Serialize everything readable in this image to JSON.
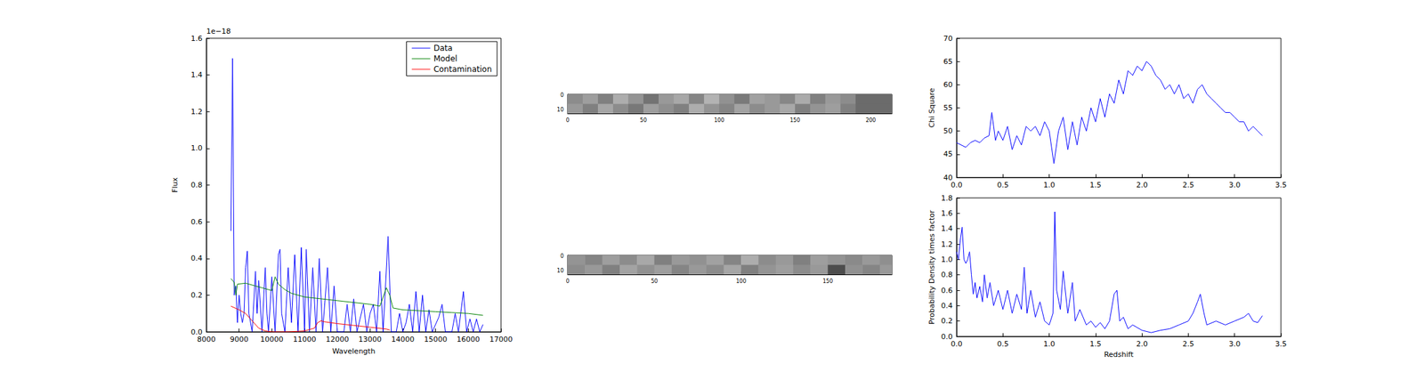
{
  "chart_data": [
    {
      "type": "line",
      "x_label": "Wavelength",
      "y_label": "Flux",
      "annotation": "1e−18",
      "xlim": [
        8000,
        17000
      ],
      "xticks": [
        8000,
        9000,
        10000,
        11000,
        12000,
        13000,
        14000,
        15000,
        16000,
        17000
      ],
      "ylim": [
        0,
        1.6
      ],
      "yticks": [
        {
          "value": 0,
          "label": "0.0"
        },
        {
          "value": 0.2,
          "label": "0.2"
        },
        {
          "value": 0.4,
          "label": "0.4"
        },
        {
          "value": 0.6,
          "label": "0.6"
        },
        {
          "value": 0.8,
          "label": "0.8"
        },
        {
          "value": 1.0,
          "label": "1.0"
        },
        {
          "value": 1.2,
          "label": "1.2"
        },
        {
          "value": 1.4,
          "label": "1.4"
        },
        {
          "value": 1.6,
          "label": "1.6"
        }
      ],
      "grid": false,
      "legend": "upper right",
      "series": [
        {
          "name": "Data",
          "color": "#0000ff",
          "x": [
            8750,
            8800,
            8850,
            8900,
            8950,
            9000,
            9050,
            9100,
            9150,
            9200,
            9250,
            9300,
            9400,
            9500,
            9550,
            9600,
            9700,
            9800,
            9850,
            9900,
            10000,
            10100,
            10200,
            10250,
            10300,
            10400,
            10500,
            10600,
            10700,
            10800,
            10900,
            11000,
            11050,
            11150,
            11250,
            11350,
            11450,
            11550,
            11700,
            11800,
            11900,
            12000,
            12200,
            12300,
            12400,
            12500,
            12600,
            12800,
            12900,
            13000,
            13100,
            13200,
            13300,
            13400,
            13550,
            13650,
            13800,
            13900,
            14000,
            14100,
            14200,
            14300,
            14400,
            14500,
            14600,
            14700,
            14800,
            14900,
            15100,
            15200,
            15300,
            15500,
            15600,
            15700,
            15850,
            15950,
            16050,
            16150,
            16250,
            16350,
            16450
          ],
          "values": [
            0.55,
            1.49,
            0.2,
            0.25,
            0.05,
            0.2,
            0.1,
            0.05,
            0.1,
            0.35,
            0.44,
            0.1,
            0.0,
            0.33,
            0.1,
            0.28,
            0.0,
            0.35,
            0.1,
            0.0,
            0.3,
            0.0,
            0.42,
            0.45,
            0.1,
            0.0,
            0.35,
            0.05,
            0.42,
            0.0,
            0.46,
            0.0,
            0.45,
            0.0,
            0.35,
            0.0,
            0.4,
            0.0,
            0.35,
            0.0,
            0.25,
            0.0,
            0.0,
            0.15,
            0.0,
            0.18,
            0.0,
            0.15,
            0.0,
            0.1,
            0.15,
            0.0,
            0.33,
            0.0,
            0.52,
            0.0,
            0.0,
            0.1,
            0.0,
            0.05,
            0.15,
            0.0,
            0.22,
            0.0,
            0.2,
            0.0,
            0.12,
            0.0,
            0.08,
            0.15,
            0.0,
            0.0,
            0.1,
            0.0,
            0.22,
            0.0,
            0.07,
            0.0,
            0.07,
            0.0,
            0.04
          ]
        },
        {
          "name": "Model",
          "color": "#008000",
          "x": [
            8750,
            8850,
            8900,
            8950,
            9200,
            9500,
            9700,
            9900,
            10000,
            10100,
            10200,
            10400,
            10600,
            10800,
            11000,
            11500,
            12000,
            12500,
            13000,
            13300,
            13500,
            13600,
            13700,
            14000,
            14500,
            15000,
            15500,
            16000,
            16450
          ],
          "values": [
            0.29,
            0.27,
            0.2,
            0.26,
            0.265,
            0.25,
            0.24,
            0.23,
            0.225,
            0.3,
            0.26,
            0.23,
            0.21,
            0.2,
            0.19,
            0.18,
            0.17,
            0.16,
            0.15,
            0.14,
            0.24,
            0.2,
            0.13,
            0.12,
            0.115,
            0.11,
            0.105,
            0.1,
            0.09
          ]
        },
        {
          "name": "Contamination",
          "color": "#ff0000",
          "x": [
            8750,
            9000,
            9200,
            9400,
            9600,
            9800,
            10000,
            10500,
            11000,
            11300,
            11400,
            11500,
            11600,
            12000,
            12500,
            13000,
            13500,
            13600
          ],
          "values": [
            0.14,
            0.12,
            0.1,
            0.06,
            0.02,
            0.005,
            0,
            0,
            0.005,
            0.02,
            0.05,
            0.06,
            0.055,
            0.045,
            0.035,
            0.025,
            0.015,
            0.01
          ]
        }
      ]
    },
    {
      "type": "image",
      "xlim": [
        0,
        214
      ],
      "xticks": [
        0,
        50,
        100,
        150,
        200
      ],
      "ylim": [
        -0.5,
        12.5
      ],
      "yticks": [
        0,
        10
      ],
      "grid": false,
      "x_edges": [
        0,
        10,
        20,
        30,
        40,
        50,
        60,
        70,
        80,
        90,
        100,
        110,
        120,
        130,
        140,
        150,
        160,
        170,
        180,
        190,
        214
      ],
      "y_edges": [
        -0.5,
        6,
        12.5
      ],
      "value_range": [
        0,
        1
      ],
      "cells": [
        [
          0.55,
          0.62,
          0.5,
          0.68,
          0.58,
          0.45,
          0.6,
          0.66,
          0.52,
          0.7,
          0.57,
          0.48,
          0.63,
          0.6,
          0.53,
          0.67,
          0.5,
          0.6,
          0.55,
          0.42
        ],
        [
          0.6,
          0.5,
          0.65,
          0.55,
          0.47,
          0.62,
          0.56,
          0.5,
          0.68,
          0.58,
          0.52,
          0.64,
          0.55,
          0.6,
          0.66,
          0.5,
          0.58,
          0.62,
          0.5,
          0.42
        ]
      ]
    },
    {
      "type": "image",
      "xlim": [
        0,
        187
      ],
      "xticks": [
        0,
        50,
        100,
        150
      ],
      "ylim": [
        -0.5,
        12.5
      ],
      "yticks": [
        0,
        10
      ],
      "grid": false,
      "x_edges": [
        0,
        10,
        20,
        30,
        40,
        50,
        60,
        70,
        80,
        90,
        100,
        110,
        120,
        130,
        140,
        150,
        160,
        170,
        180,
        187
      ],
      "y_edges": [
        -0.5,
        6,
        12.5
      ],
      "value_range": [
        0,
        1
      ],
      "cells": [
        [
          0.58,
          0.52,
          0.62,
          0.55,
          0.66,
          0.5,
          0.6,
          0.57,
          0.63,
          0.52,
          0.68,
          0.55,
          0.6,
          0.5,
          0.62,
          0.58,
          0.54,
          0.6,
          0.56
        ],
        [
          0.55,
          0.6,
          0.5,
          0.64,
          0.57,
          0.62,
          0.52,
          0.6,
          0.55,
          0.65,
          0.5,
          0.58,
          0.62,
          0.55,
          0.6,
          0.3,
          0.57,
          0.52,
          0.6
        ]
      ]
    },
    {
      "type": "line",
      "y_label": "Chi Square",
      "xlim": [
        0,
        3.5
      ],
      "xticks": [
        {
          "value": 0,
          "label": "0.0"
        },
        {
          "value": 0.5,
          "label": "0.5"
        },
        {
          "value": 1.0,
          "label": "1.0"
        },
        {
          "value": 1.5,
          "label": "1.5"
        },
        {
          "value": 2.0,
          "label": "2.0"
        },
        {
          "value": 2.5,
          "label": "2.5"
        },
        {
          "value": 3.0,
          "label": "3.0"
        },
        {
          "value": 3.5,
          "label": "3.5"
        }
      ],
      "ylim": [
        40,
        70
      ],
      "yticks": [
        40,
        45,
        50,
        55,
        60,
        65,
        70
      ],
      "grid": false,
      "series": [
        {
          "color": "#0000ff",
          "x": [
            0,
            0.05,
            0.1,
            0.15,
            0.2,
            0.25,
            0.3,
            0.35,
            0.38,
            0.42,
            0.45,
            0.5,
            0.55,
            0.6,
            0.65,
            0.7,
            0.75,
            0.8,
            0.85,
            0.9,
            0.95,
            1.0,
            1.05,
            1.1,
            1.15,
            1.2,
            1.25,
            1.3,
            1.35,
            1.4,
            1.45,
            1.5,
            1.55,
            1.6,
            1.65,
            1.7,
            1.75,
            1.8,
            1.85,
            1.9,
            1.95,
            2.0,
            2.05,
            2.1,
            2.15,
            2.2,
            2.25,
            2.3,
            2.35,
            2.4,
            2.45,
            2.5,
            2.55,
            2.6,
            2.65,
            2.7,
            2.75,
            2.8,
            2.85,
            2.9,
            2.95,
            3.0,
            3.05,
            3.1,
            3.15,
            3.2,
            3.25,
            3.3
          ],
          "values": [
            47.5,
            47,
            46.5,
            47.5,
            48,
            47.5,
            48.5,
            49,
            54,
            48,
            50,
            48,
            51,
            46,
            49,
            47,
            51,
            50,
            51,
            49,
            52,
            50,
            43,
            50,
            53,
            46,
            52,
            47,
            53,
            50,
            55,
            52,
            57,
            53,
            58,
            56,
            61,
            58,
            63,
            62,
            64,
            63,
            65,
            64,
            62,
            61,
            59,
            60,
            58,
            60,
            57,
            58,
            56,
            59,
            60,
            58,
            57,
            56,
            55,
            54,
            54,
            53,
            52,
            52,
            50,
            51,
            50,
            49
          ]
        }
      ]
    },
    {
      "type": "line",
      "x_label": "Redshift",
      "y_label": "Probability Density times factor",
      "xlim": [
        0,
        3.5
      ],
      "xticks": [
        {
          "value": 0,
          "label": "0.0"
        },
        {
          "value": 0.5,
          "label": "0.5"
        },
        {
          "value": 1.0,
          "label": "1.0"
        },
        {
          "value": 1.5,
          "label": "1.5"
        },
        {
          "value": 2.0,
          "label": "2.0"
        },
        {
          "value": 2.5,
          "label": "2.5"
        },
        {
          "value": 3.0,
          "label": "3.0"
        },
        {
          "value": 3.5,
          "label": "3.5"
        }
      ],
      "ylim": [
        0,
        1.8
      ],
      "yticks": [
        {
          "value": 0,
          "label": "0.0"
        },
        {
          "value": 0.2,
          "label": "0.2"
        },
        {
          "value": 0.4,
          "label": "0.4"
        },
        {
          "value": 0.6,
          "label": "0.6"
        },
        {
          "value": 0.8,
          "label": "0.8"
        },
        {
          "value": 1.0,
          "label": "1.0"
        },
        {
          "value": 1.2,
          "label": "1.2"
        },
        {
          "value": 1.4,
          "label": "1.4"
        },
        {
          "value": 1.6,
          "label": "1.6"
        },
        {
          "value": 1.8,
          "label": "1.8"
        }
      ],
      "grid": false,
      "series": [
        {
          "color": "#0000ff",
          "x": [
            0,
            0.02,
            0.04,
            0.06,
            0.08,
            0.1,
            0.12,
            0.14,
            0.16,
            0.18,
            0.2,
            0.22,
            0.25,
            0.28,
            0.3,
            0.33,
            0.36,
            0.4,
            0.45,
            0.5,
            0.55,
            0.6,
            0.65,
            0.7,
            0.73,
            0.76,
            0.8,
            0.85,
            0.9,
            0.95,
            1.0,
            1.04,
            1.06,
            1.08,
            1.12,
            1.15,
            1.2,
            1.25,
            1.28,
            1.33,
            1.4,
            1.45,
            1.5,
            1.55,
            1.6,
            1.65,
            1.7,
            1.73,
            1.76,
            1.8,
            1.85,
            1.9,
            2.0,
            2.1,
            2.2,
            2.3,
            2.4,
            2.5,
            2.55,
            2.6,
            2.63,
            2.67,
            2.7,
            2.8,
            2.9,
            3.0,
            3.1,
            3.15,
            3.2,
            3.25,
            3.3
          ],
          "values": [
            1.1,
            1.0,
            1.25,
            1.42,
            1.0,
            0.95,
            1.0,
            1.1,
            0.8,
            0.55,
            0.7,
            0.5,
            0.65,
            0.45,
            0.8,
            0.5,
            0.7,
            0.4,
            0.6,
            0.35,
            0.6,
            0.3,
            0.55,
            0.35,
            0.9,
            0.3,
            0.6,
            0.25,
            0.45,
            0.2,
            0.15,
            0.3,
            1.62,
            0.6,
            0.35,
            0.85,
            0.3,
            0.7,
            0.2,
            0.35,
            0.15,
            0.2,
            0.12,
            0.18,
            0.1,
            0.2,
            0.55,
            0.6,
            0.2,
            0.25,
            0.1,
            0.15,
            0.08,
            0.05,
            0.08,
            0.1,
            0.15,
            0.2,
            0.3,
            0.45,
            0.55,
            0.3,
            0.15,
            0.2,
            0.15,
            0.2,
            0.25,
            0.3,
            0.2,
            0.18,
            0.27
          ]
        }
      ]
    }
  ]
}
